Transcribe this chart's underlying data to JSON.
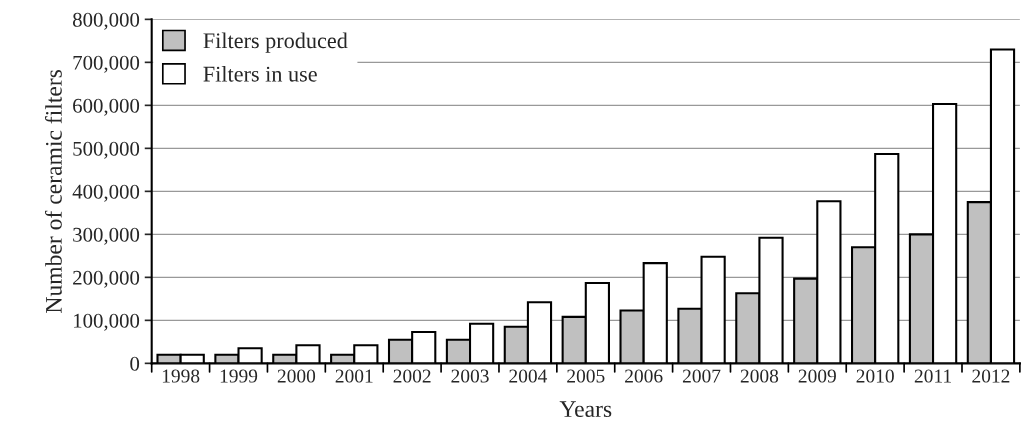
{
  "chart_data": {
    "type": "bar",
    "xlabel": "Years",
    "ylabel": "Number of ceramic filters",
    "categories": [
      "1998",
      "1999",
      "2000",
      "2001",
      "2002",
      "2003",
      "2004",
      "2005",
      "2006",
      "2007",
      "2008",
      "2009",
      "2010",
      "2011",
      "2012"
    ],
    "series": [
      {
        "name": "Filters produced",
        "color": "#c0c0c0",
        "values": [
          20000,
          20000,
          20000,
          20000,
          55000,
          55000,
          85000,
          108000,
          123000,
          127000,
          163000,
          197000,
          270000,
          300000,
          375000
        ]
      },
      {
        "name": "Filters in use",
        "color": "#ffffff",
        "values": [
          20000,
          35000,
          42000,
          42000,
          73000,
          92000,
          142000,
          187000,
          233000,
          248000,
          292000,
          377000,
          487000,
          603000,
          730000
        ]
      }
    ],
    "ylim": [
      0,
      800000
    ],
    "yticks": [
      {
        "value": 0,
        "label": "0"
      },
      {
        "value": 100000,
        "label": "100,000"
      },
      {
        "value": 200000,
        "label": "200,000"
      },
      {
        "value": 300000,
        "label": "300,000"
      },
      {
        "value": 400000,
        "label": "400,000"
      },
      {
        "value": 500000,
        "label": "500,000"
      },
      {
        "value": 600000,
        "label": "600,000"
      },
      {
        "value": 700000,
        "label": "700,000"
      },
      {
        "value": 800000,
        "label": "800,000"
      }
    ],
    "grid": "y",
    "legend": "top left"
  }
}
